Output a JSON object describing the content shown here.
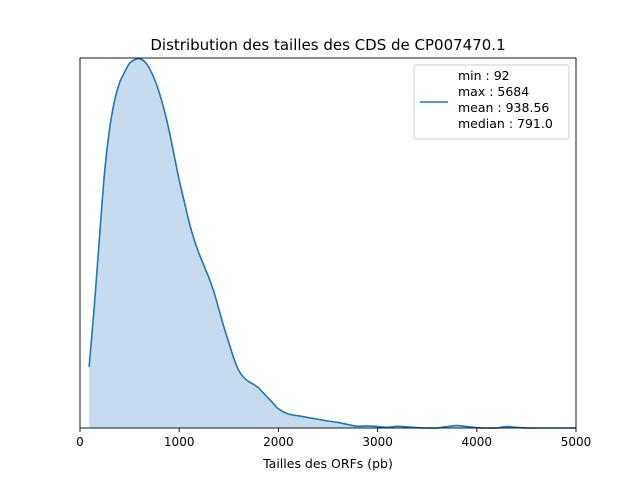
{
  "chart_data": {
    "type": "area",
    "title": "Distribution des tailles des CDS de CP007470.1",
    "xlabel": "Tailles des ORFs (pb)",
    "ylabel": "",
    "xlim": [
      0,
      5000
    ],
    "ylim": [
      0,
      1.06
    ],
    "xticks": [
      "0",
      "1000",
      "2000",
      "3000",
      "4000",
      "5000"
    ],
    "yticks_visible": false,
    "grid": false,
    "legend_position": "top-right",
    "series": [
      {
        "color": "#1f77b4",
        "fill_color": "#c6dbed",
        "x": [
          92,
          150,
          200,
          250,
          300,
          350,
          400,
          450,
          500,
          550,
          600,
          650,
          700,
          750,
          800,
          850,
          900,
          950,
          1000,
          1050,
          1100,
          1150,
          1200,
          1250,
          1300,
          1350,
          1400,
          1450,
          1500,
          1550,
          1600,
          1650,
          1700,
          1750,
          1800,
          1850,
          1900,
          1950,
          2000,
          2100,
          2200,
          2300,
          2400,
          2500,
          2600,
          2700,
          2800,
          2900,
          3000,
          3100,
          3200,
          3300,
          3400,
          3500,
          3600,
          3700,
          3800,
          3900,
          4000,
          4100,
          4200,
          4300,
          4400,
          4500,
          4600,
          4700,
          4800,
          4900,
          5000
        ],
        "y": [
          0.175,
          0.37,
          0.56,
          0.74,
          0.86,
          0.94,
          0.99,
          1.02,
          1.045,
          1.055,
          1.058,
          1.05,
          1.03,
          1.0,
          0.96,
          0.91,
          0.85,
          0.78,
          0.71,
          0.65,
          0.59,
          0.54,
          0.5,
          0.465,
          0.43,
          0.39,
          0.34,
          0.29,
          0.245,
          0.2,
          0.165,
          0.145,
          0.133,
          0.125,
          0.115,
          0.1,
          0.085,
          0.07,
          0.055,
          0.04,
          0.035,
          0.03,
          0.025,
          0.02,
          0.016,
          0.01,
          0.005,
          0.006,
          0.004,
          0.002,
          0.005,
          0.003,
          0.001,
          0.0,
          0.0,
          0.004,
          0.007,
          0.004,
          0.001,
          0.0,
          0.0,
          0.004,
          0.002,
          0.0,
          0.0,
          0.0,
          0.0,
          0.0,
          0.0
        ]
      }
    ],
    "legend": [
      "min : 92",
      "max : 5684",
      "mean : 938.56",
      "median : 791.0"
    ]
  }
}
